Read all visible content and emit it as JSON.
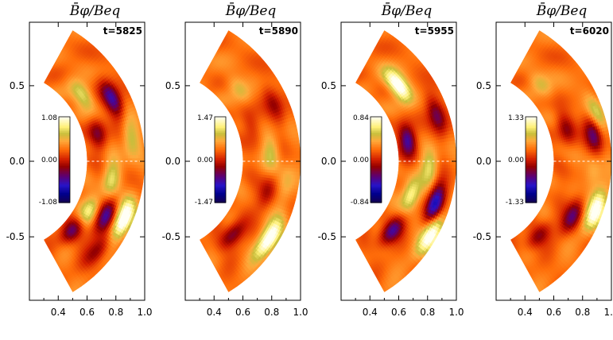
{
  "chart_data": [
    {
      "type": "heatmap",
      "title": "B̄φ/Beq",
      "time_label": "t=5825",
      "colorbar": {
        "max_label": "1.08",
        "mid_label": "0.00",
        "min_label": "-1.08",
        "vmin": -1.08,
        "vmax": 1.08
      },
      "x_ticks": [
        "0.4",
        "0.6",
        "0.8",
        "1.0"
      ],
      "y_ticks": [
        "0.5",
        "0.0",
        "-0.5"
      ],
      "xlim": [
        0.2,
        1.0
      ],
      "ylim": [
        -0.92,
        0.92
      ],
      "radial_range": [
        0.6,
        1.0
      ],
      "latitude_range_deg": [
        -60,
        60
      ],
      "features": [
        {
          "r": 0.72,
          "lat": 38,
          "v": 0.55
        },
        {
          "r": 0.88,
          "lat": 28,
          "v": -0.85
        },
        {
          "r": 0.7,
          "lat": 15,
          "v": -0.55
        },
        {
          "r": 0.92,
          "lat": 10,
          "v": 0.45
        },
        {
          "r": 0.78,
          "lat": -8,
          "v": 0.5
        },
        {
          "r": 0.94,
          "lat": -24,
          "v": 1.05
        },
        {
          "r": 0.82,
          "lat": -26,
          "v": -0.75
        },
        {
          "r": 0.68,
          "lat": -42,
          "v": -0.7
        },
        {
          "r": 0.7,
          "lat": -28,
          "v": 0.6
        },
        {
          "r": 0.9,
          "lat": -40,
          "v": -0.5
        }
      ]
    },
    {
      "type": "heatmap",
      "title": "B̄φ/Beq",
      "time_label": "t=5890",
      "colorbar": {
        "max_label": "1.47",
        "mid_label": "0.00",
        "min_label": "-1.47",
        "vmin": -1.47,
        "vmax": 1.47
      },
      "x_ticks": [
        "0.4",
        "0.6",
        "0.8",
        "1.0"
      ],
      "y_ticks": [
        "0.5",
        "0.0",
        "-0.5"
      ],
      "xlim": [
        0.2,
        1.0
      ],
      "ylim": [
        -0.92,
        0.92
      ],
      "radial_range": [
        0.6,
        1.0
      ],
      "latitude_range_deg": [
        -60,
        60
      ],
      "features": [
        {
          "r": 0.75,
          "lat": 40,
          "v": 0.45
        },
        {
          "r": 0.9,
          "lat": 25,
          "v": -0.6
        },
        {
          "r": 0.8,
          "lat": 5,
          "v": 0.55
        },
        {
          "r": 0.92,
          "lat": -10,
          "v": 0.4
        },
        {
          "r": 0.94,
          "lat": -33,
          "v": 1.3
        },
        {
          "r": 0.72,
          "lat": -42,
          "v": -0.85
        },
        {
          "r": 0.8,
          "lat": -15,
          "v": -0.55
        },
        {
          "r": 0.7,
          "lat": 20,
          "v": -0.45
        }
      ]
    },
    {
      "type": "heatmap",
      "title": "B̄φ/Beq",
      "time_label": "t=5955",
      "colorbar": {
        "max_label": "0.84",
        "mid_label": "0.00",
        "min_label": "-0.84",
        "vmin": -0.84,
        "vmax": 0.84
      },
      "x_ticks": [
        "0.4",
        "0.6",
        "0.8",
        "1.0"
      ],
      "y_ticks": [
        "0.5",
        "0.0",
        "-0.5"
      ],
      "xlim": [
        0.2,
        1.0
      ],
      "ylim": [
        -0.92,
        0.92
      ],
      "radial_range": [
        0.6,
        1.0
      ],
      "latitude_range_deg": [
        -60,
        60
      ],
      "features": [
        {
          "r": 0.78,
          "lat": 40,
          "v": 0.8
        },
        {
          "r": 0.68,
          "lat": 12,
          "v": -0.7
        },
        {
          "r": 0.92,
          "lat": 20,
          "v": -0.5
        },
        {
          "r": 0.82,
          "lat": -2,
          "v": 0.4
        },
        {
          "r": 0.9,
          "lat": -18,
          "v": -0.8
        },
        {
          "r": 0.96,
          "lat": -30,
          "v": 0.75
        },
        {
          "r": 0.72,
          "lat": -40,
          "v": -0.6
        },
        {
          "r": 0.72,
          "lat": -18,
          "v": 0.55
        }
      ]
    },
    {
      "type": "heatmap",
      "title": "B̄φ/Beq",
      "time_label": "t=6020",
      "colorbar": {
        "max_label": "1.33",
        "mid_label": "0.00",
        "min_label": "-1.33",
        "vmin": -1.33,
        "vmax": 1.33
      },
      "x_ticks": [
        "0.4",
        "0.6",
        "0.8",
        "1.0"
      ],
      "y_ticks": [
        "0.5",
        "0.0",
        "-0.5"
      ],
      "xlim": [
        0.2,
        1.0
      ],
      "ylim": [
        -0.92,
        0.92
      ],
      "radial_range": [
        0.6,
        1.0
      ],
      "latitude_range_deg": [
        -60,
        60
      ],
      "features": [
        {
          "r": 0.72,
          "lat": 45,
          "v": 0.4
        },
        {
          "r": 0.95,
          "lat": 20,
          "v": 0.6
        },
        {
          "r": 0.9,
          "lat": 12,
          "v": -0.9
        },
        {
          "r": 0.72,
          "lat": 18,
          "v": -0.6
        },
        {
          "r": 0.95,
          "lat": -20,
          "v": 1.2
        },
        {
          "r": 0.82,
          "lat": -26,
          "v": -0.85
        },
        {
          "r": 0.7,
          "lat": -45,
          "v": -0.6
        },
        {
          "r": 0.88,
          "lat": -5,
          "v": 0.35
        }
      ]
    }
  ]
}
